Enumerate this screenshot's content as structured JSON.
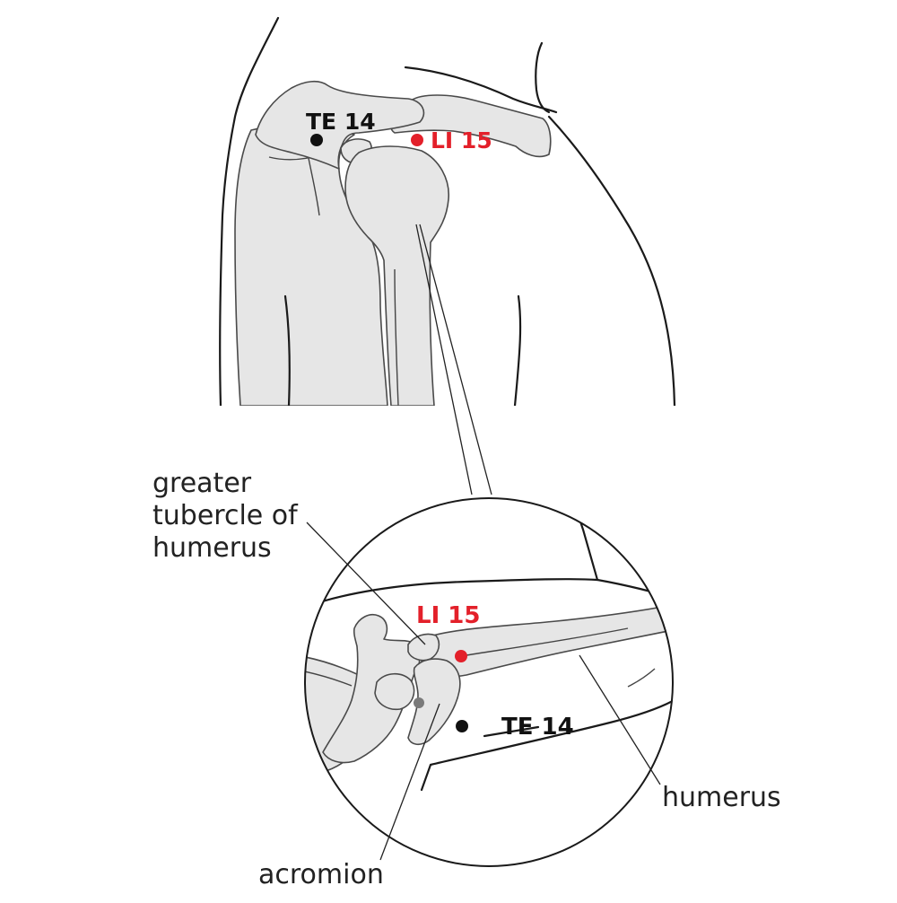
{
  "colors": {
    "point_red": "#e3202a",
    "point_black": "#111111",
    "point_grey": "#7a7a7a",
    "bone_fill": "#e6e6e6",
    "outline": "#1a1a1a"
  },
  "points": {
    "te14": {
      "label": "TE 14"
    },
    "li15": {
      "label": "LI 15"
    }
  },
  "inset": {
    "li15_label": "LI 15",
    "te14_label": "TE 14"
  },
  "annotations": {
    "greater_tubercle": [
      "greater",
      "tubercle of",
      "humerus"
    ],
    "humerus": "humerus",
    "acromion": "acromion"
  }
}
